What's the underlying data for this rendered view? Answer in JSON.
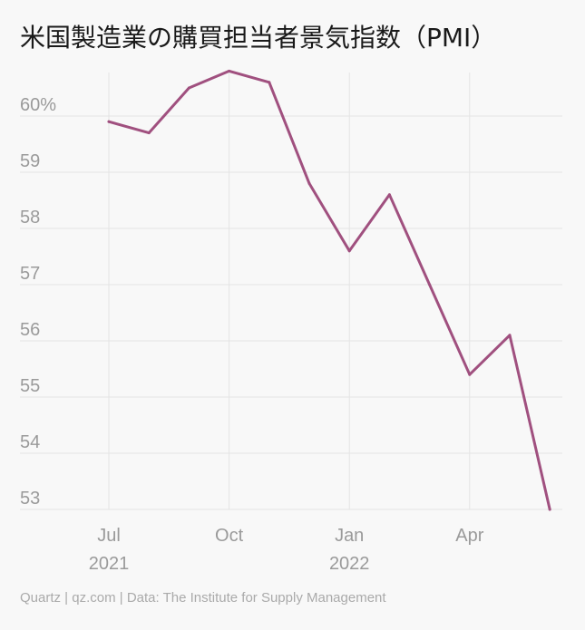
{
  "title": "米国製造業の購買担当者景気指数（PMI）",
  "footer": "Quartz | qz.com | Data: The Institute for Supply Management",
  "colors": {
    "line": "#a0507f",
    "grid": "#e4e4e4",
    "tick_text": "#9a9a9a",
    "background": "#f8f8f8"
  },
  "chart_data": {
    "type": "line",
    "title": "米国製造業の購買担当者景気指数（PMI）",
    "xlabel": "",
    "ylabel": "",
    "x": [
      "2021-07",
      "2021-08",
      "2021-09",
      "2021-10",
      "2021-11",
      "2021-12",
      "2022-01",
      "2022-02",
      "2022-03",
      "2022-04",
      "2022-05",
      "2022-06"
    ],
    "values": [
      59.9,
      59.7,
      60.5,
      60.8,
      60.6,
      58.8,
      57.6,
      58.6,
      57.0,
      55.4,
      56.1,
      53.0
    ],
    "ylim": [
      53,
      60.8
    ],
    "y_ticks": [
      {
        "value": 60,
        "label": "60%"
      },
      {
        "value": 59,
        "label": "59"
      },
      {
        "value": 58,
        "label": "58"
      },
      {
        "value": 57,
        "label": "57"
      },
      {
        "value": 56,
        "label": "56"
      },
      {
        "value": 55,
        "label": "55"
      },
      {
        "value": 54,
        "label": "54"
      },
      {
        "value": 53,
        "label": "53"
      }
    ],
    "x_ticks": [
      {
        "index": 0,
        "label": "Jul",
        "sublabel": "2021"
      },
      {
        "index": 3,
        "label": "Oct",
        "sublabel": ""
      },
      {
        "index": 6,
        "label": "Jan",
        "sublabel": "2022"
      },
      {
        "index": 9,
        "label": "Apr",
        "sublabel": ""
      }
    ],
    "grid": true,
    "legend": "none"
  }
}
